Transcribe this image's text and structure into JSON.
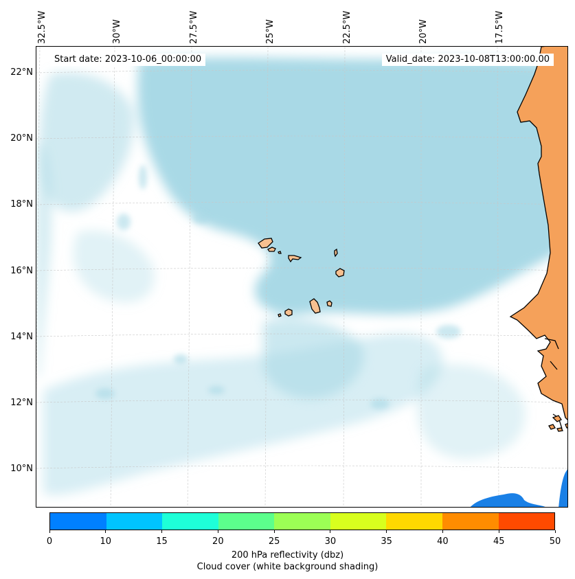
{
  "map": {
    "start_date": "Start date: 2023-10-06_00:00:00",
    "valid_date": "Valid_date: 2023-10-08T13:00:00.00",
    "lat_labels": [
      "22°N",
      "20°N",
      "18°N",
      "16°N",
      "14°N",
      "12°N",
      "10°N"
    ],
    "lon_labels": [
      "32.5°W",
      "30°W",
      "27.5°W",
      "25°W",
      "22.5°W",
      "20°W",
      "17.5°W"
    ],
    "colors": {
      "land": "#f5a15a",
      "island_land": "#f7c090",
      "cloud": "#a9d9e6",
      "ocean": "#ffffff",
      "coast": "#000000",
      "grid": "#c8c8c8",
      "reflectivity_blue": "#1a80e6"
    }
  },
  "colorbar": {
    "ticks": [
      "0",
      "10",
      "15",
      "20",
      "25",
      "30",
      "35",
      "40",
      "45",
      "50"
    ],
    "colors": [
      "#0080ff",
      "#00c4ff",
      "#1effd8",
      "#5cff8c",
      "#9cff55",
      "#d8ff1e",
      "#ffd800",
      "#ff8c00",
      "#ff4a00"
    ],
    "title_line1": "200 hPa reflectivity (dbz)",
    "title_line2": "Cloud cover (white background shading)"
  }
}
